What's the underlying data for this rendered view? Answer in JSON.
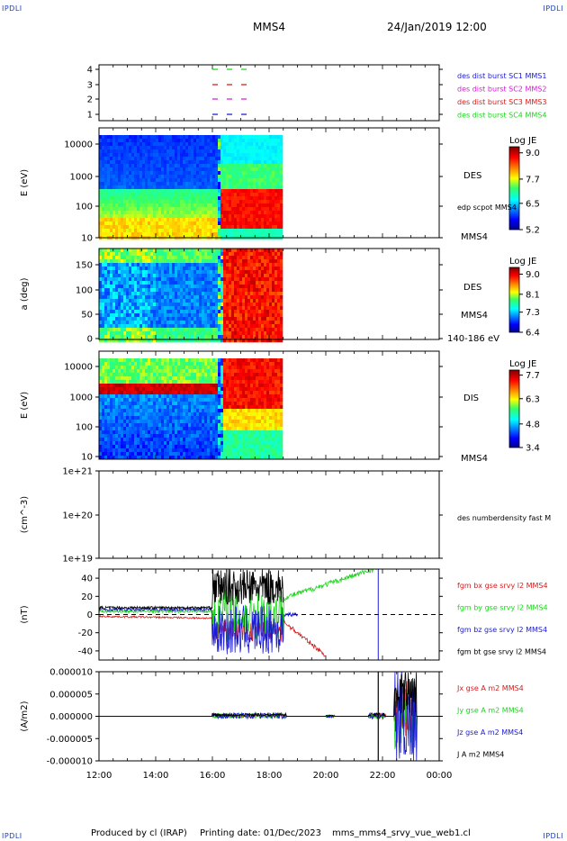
{
  "corner_label": "IPDLI",
  "header": {
    "title": "MMS4",
    "datetime": "24/Jan/2019 12:00"
  },
  "footer": {
    "produced_by": "Produced by cl (IRAP)",
    "printing_date": "Printing date: 01/Dec/2023",
    "file_name": "mms_mms4_srvy_vue_web1.cl"
  },
  "colors": {
    "blue": "#1a1ad6",
    "magenta": "#d61ad6",
    "red": "#d61a1a",
    "green": "#1ad61a",
    "black": "#000000"
  },
  "chart_data": [
    {
      "type": "table",
      "panel": "burst",
      "yticks": [
        "4",
        "3",
        "2",
        "1"
      ],
      "xrange": [
        "12:00",
        "00:00"
      ],
      "legend": [
        {
          "label": "des dist burst SC1 MMS1",
          "color": "#1a1ad6"
        },
        {
          "label": "des dist burst SC2 MMS2",
          "color": "#d61ad6"
        },
        {
          "label": "des dist burst SC3 MMS3",
          "color": "#d61a1a"
        },
        {
          "label": "des dist burst SC4 MMS4",
          "color": "#1ad61a"
        }
      ]
    },
    {
      "type": "heatmap",
      "panel": "des-energy",
      "ylabel": "E (eV)",
      "yscale": "log",
      "ylim": [
        10,
        30000
      ],
      "yticks": [
        "10000",
        "1000",
        "100",
        "10"
      ],
      "side_label": "DES",
      "side_sub": "edp scpot MMS4",
      "side_bottom": "MMS4",
      "colorbar": {
        "title": "Log JE",
        "ticks": [
          "9.0",
          "7.7",
          "6.5",
          "5.2"
        ],
        "range": [
          5.2,
          9.3
        ]
      }
    },
    {
      "type": "heatmap",
      "panel": "des-pitch",
      "ylabel": "a (deg)",
      "ylim": [
        0,
        180
      ],
      "yticks": [
        "150",
        "100",
        "50",
        "0"
      ],
      "side_label": "DES",
      "side_sub": "MMS4",
      "side_bottom": "140-186 eV",
      "colorbar": {
        "title": "Log JE",
        "ticks": [
          "9.0",
          "8.1",
          "7.3",
          "6.4"
        ],
        "range": [
          6.4,
          9.3
        ]
      }
    },
    {
      "type": "heatmap",
      "panel": "dis-energy",
      "ylabel": "E (eV)",
      "yscale": "log",
      "ylim": [
        10,
        25000
      ],
      "yticks": [
        "10000",
        "1000",
        "100",
        "10"
      ],
      "side_label": "DIS",
      "side_bottom": "MMS4",
      "colorbar": {
        "title": "Log JE",
        "ticks": [
          "7.7",
          "6.3",
          "4.8",
          "3.4"
        ],
        "range": [
          3.4,
          8.0
        ]
      }
    },
    {
      "type": "line",
      "panel": "density",
      "ylabel": "(cm^-3)",
      "yscale": "log",
      "yticks": [
        "1e+21",
        "1e+20",
        "1e+19"
      ],
      "legend": [
        {
          "label": "des numberdensity fast M",
          "color": "#000000"
        }
      ]
    },
    {
      "type": "line",
      "panel": "magnetic-field",
      "ylabel": "(nT)",
      "ylim": [
        -50,
        50
      ],
      "yticks": [
        "40",
        "20",
        "0",
        "-20",
        "-40"
      ],
      "legend": [
        {
          "label": "fgm bx gse srvy l2 MMS4",
          "color": "#d61a1a"
        },
        {
          "label": "fgm by gse srvy l2 MMS4",
          "color": "#1ad61a"
        },
        {
          "label": "fgm bz gse srvy l2 MMS4",
          "color": "#1a1ad6"
        },
        {
          "label": "fgm bt gse srvy l2 MMS4",
          "color": "#000000"
        }
      ]
    },
    {
      "type": "line",
      "panel": "current-density",
      "ylabel": "(A/m2)",
      "ylim": [
        -1e-05,
        1e-05
      ],
      "yticks": [
        "0.000010",
        "0.000005",
        "0.000000",
        "-0.000005",
        "-0.000010"
      ],
      "xticks": [
        "12:00",
        "14:00",
        "16:00",
        "18:00",
        "20:00",
        "22:00",
        "00:00"
      ],
      "legend": [
        {
          "label": "Jx gse A m2 MMS4",
          "color": "#d61a1a"
        },
        {
          "label": "Jy gse A m2 MMS4",
          "color": "#1ad61a"
        },
        {
          "label": "Jz gse A m2 MMS4",
          "color": "#1a1ad6"
        },
        {
          "label": "J A m2 MMS4",
          "color": "#000000"
        }
      ]
    }
  ]
}
